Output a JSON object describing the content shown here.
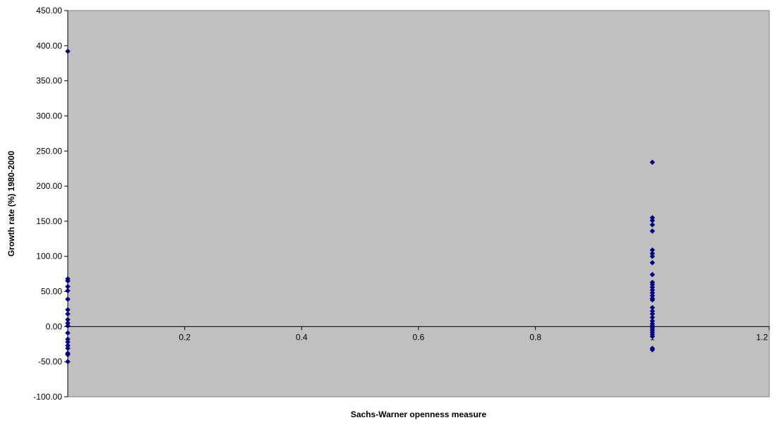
{
  "chart_data": {
    "type": "scatter",
    "title": "",
    "xlabel": "Sachs-Warner openness measure",
    "ylabel": "Growth rate (%) 1980-2000",
    "xlim": [
      0,
      1.2
    ],
    "ylim": [
      -100,
      450
    ],
    "x_ticks": [
      {
        "value": 0.2,
        "label": "0.2"
      },
      {
        "value": 0.4,
        "label": "0.4"
      },
      {
        "value": 0.6,
        "label": "0.6"
      },
      {
        "value": 0.8,
        "label": "0.8"
      },
      {
        "value": 1.0,
        "label": "1"
      },
      {
        "value": 1.2,
        "label": "1.2"
      }
    ],
    "y_ticks": [
      {
        "value": 450,
        "label": "450.00"
      },
      {
        "value": 400,
        "label": "400.00"
      },
      {
        "value": 350,
        "label": "350.00"
      },
      {
        "value": 300,
        "label": "300.00"
      },
      {
        "value": 250,
        "label": "250.00"
      },
      {
        "value": 200,
        "label": "200.00"
      },
      {
        "value": 150,
        "label": "150.00"
      },
      {
        "value": 100,
        "label": "100.00"
      },
      {
        "value": 50,
        "label": "50.00"
      },
      {
        "value": 0,
        "label": "0.00"
      },
      {
        "value": -50,
        "label": "-50.00"
      },
      {
        "value": -100,
        "label": "-100.00"
      }
    ],
    "grid": false,
    "plot_background": "#c0c0c0",
    "marker_color": "#000080",
    "points": [
      {
        "x": 0,
        "y": 392
      },
      {
        "x": 0,
        "y": 68
      },
      {
        "x": 0,
        "y": 65
      },
      {
        "x": 0,
        "y": 57
      },
      {
        "x": 0,
        "y": 51
      },
      {
        "x": 0,
        "y": 39
      },
      {
        "x": 0,
        "y": 24
      },
      {
        "x": 0,
        "y": 18
      },
      {
        "x": 0,
        "y": 10
      },
      {
        "x": 0,
        "y": 5
      },
      {
        "x": 0,
        "y": 1
      },
      {
        "x": 0,
        "y": -9
      },
      {
        "x": 0,
        "y": -18
      },
      {
        "x": 0,
        "y": -22
      },
      {
        "x": 0,
        "y": -27
      },
      {
        "x": 0,
        "y": -31
      },
      {
        "x": 0,
        "y": -38
      },
      {
        "x": 0,
        "y": -40
      },
      {
        "x": 0,
        "y": -50
      },
      {
        "x": 1,
        "y": 234
      },
      {
        "x": 1,
        "y": 155
      },
      {
        "x": 1,
        "y": 151
      },
      {
        "x": 1,
        "y": 145
      },
      {
        "x": 1,
        "y": 136
      },
      {
        "x": 1,
        "y": 109
      },
      {
        "x": 1,
        "y": 104
      },
      {
        "x": 1,
        "y": 100
      },
      {
        "x": 1,
        "y": 91
      },
      {
        "x": 1,
        "y": 74
      },
      {
        "x": 1,
        "y": 63
      },
      {
        "x": 1,
        "y": 60
      },
      {
        "x": 1,
        "y": 56
      },
      {
        "x": 1,
        "y": 52
      },
      {
        "x": 1,
        "y": 48
      },
      {
        "x": 1,
        "y": 44
      },
      {
        "x": 1,
        "y": 40
      },
      {
        "x": 1,
        "y": 38
      },
      {
        "x": 1,
        "y": 27
      },
      {
        "x": 1,
        "y": 22
      },
      {
        "x": 1,
        "y": 18
      },
      {
        "x": 1,
        "y": 13
      },
      {
        "x": 1,
        "y": 8
      },
      {
        "x": 1,
        "y": 4
      },
      {
        "x": 1,
        "y": 1
      },
      {
        "x": 1,
        "y": -2
      },
      {
        "x": 1,
        "y": -5
      },
      {
        "x": 1,
        "y": -8
      },
      {
        "x": 1,
        "y": -11
      },
      {
        "x": 1,
        "y": -14
      },
      {
        "x": 1,
        "y": -31
      },
      {
        "x": 1,
        "y": -33
      }
    ]
  }
}
